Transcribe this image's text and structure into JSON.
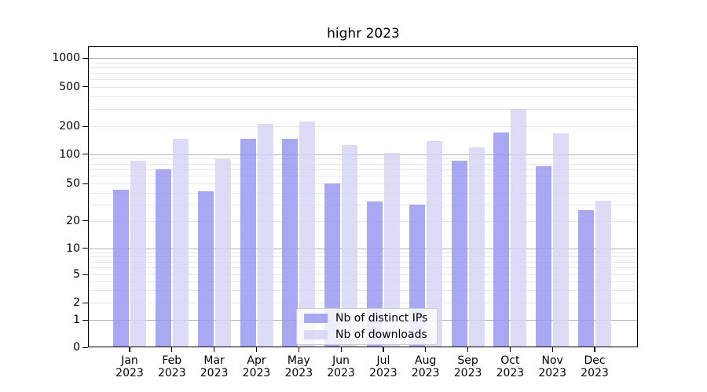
{
  "title": "highr 2023",
  "chart_data": {
    "type": "bar",
    "title": "highr 2023",
    "categories": [
      "Jan 2023",
      "Feb 2023",
      "Mar 2023",
      "Apr 2023",
      "May 2023",
      "Jun 2023",
      "Jul 2023",
      "Aug 2023",
      "Sep 2023",
      "Oct 2023",
      "Nov 2023",
      "Dec 2023"
    ],
    "series": [
      {
        "name": "Nb of distinct IPs",
        "color": "#9595f0",
        "values": [
          43,
          70,
          41,
          147,
          147,
          50,
          32,
          30,
          86,
          170,
          75,
          26
        ]
      },
      {
        "name": "Nb of downloads",
        "color": "#d4d4f5",
        "values": [
          85,
          147,
          89,
          210,
          225,
          125,
          103,
          138,
          119,
          300,
          168,
          33
        ]
      }
    ],
    "xlabel": "",
    "ylabel": "",
    "yscale": "symlog",
    "yticks": [
      0,
      1,
      2,
      5,
      10,
      20,
      50,
      100,
      200,
      500,
      1000
    ],
    "ylim": [
      0,
      1300
    ],
    "grid": true,
    "legend_position": "lower center"
  },
  "colors": {
    "bar_distinct_ips": "#9595f0",
    "bar_downloads": "#d4d4f5",
    "grid_major": "#b2b2b2",
    "grid_minor": "#e7e7e7",
    "axis": "#000000",
    "background": "#ffffff"
  }
}
